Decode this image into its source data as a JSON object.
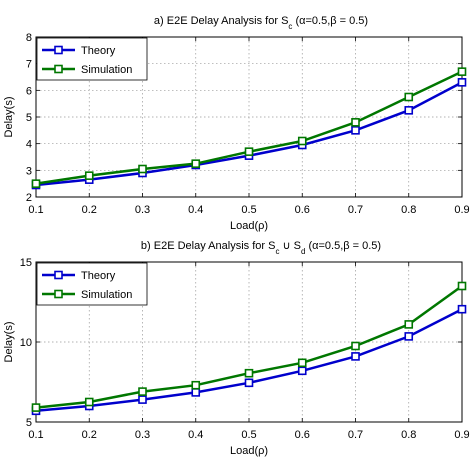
{
  "chart_data": [
    {
      "type": "line",
      "title": "a) E2E Delay Analysis for S c (α=0.5,β = 0.5)",
      "title_parts": {
        "prefix": "a) E2E Delay Analysis for S",
        "sub": "c",
        "suffix": " (α=0.5,β = 0.5)"
      },
      "xlabel": "Load(ρ)",
      "ylabel": "Delay(s)",
      "x": [
        0.1,
        0.2,
        0.3,
        0.4,
        0.5,
        0.6,
        0.7,
        0.8,
        0.9
      ],
      "x_ticks": [
        "0.1",
        "0.2",
        "0.3",
        "0.4",
        "0.5",
        "0.6",
        "0.7",
        "0.8",
        "0.9"
      ],
      "xlim": [
        0.1,
        0.9
      ],
      "ylim": [
        2,
        8
      ],
      "y_ticks": [
        2,
        3,
        4,
        5,
        6,
        7,
        8
      ],
      "y_tick_labels": [
        "2",
        "3",
        "4",
        "5",
        "6",
        "7",
        "8"
      ],
      "grid": true,
      "legend_position": "top-left",
      "series": [
        {
          "name": "Theory",
          "color": "#0000cc",
          "marker": "square",
          "values": [
            2.45,
            2.65,
            2.9,
            3.2,
            3.55,
            3.95,
            4.5,
            5.25,
            6.3
          ]
        },
        {
          "name": "Simulation",
          "color": "#007700",
          "marker": "square",
          "values": [
            2.5,
            2.8,
            3.05,
            3.25,
            3.7,
            4.1,
            4.8,
            5.75,
            6.7
          ]
        }
      ]
    },
    {
      "type": "line",
      "title": "b) E2E Delay Analysis for S c ∪ S d (α=0.5,β = 0.5)",
      "title_parts": {
        "prefix": "b) E2E Delay Analysis for S",
        "sub": "c",
        "mid": " ∪ S",
        "sub2": "d",
        "suffix": " (α=0.5,β = 0.5)"
      },
      "xlabel": "Load(ρ)",
      "ylabel": "Delay(s)",
      "x": [
        0.1,
        0.2,
        0.3,
        0.4,
        0.5,
        0.6,
        0.7,
        0.8,
        0.9
      ],
      "x_ticks": [
        "0.1",
        "0.2",
        "0.3",
        "0.4",
        "0.5",
        "0.6",
        "0.7",
        "0.8",
        "0.9"
      ],
      "xlim": [
        0.1,
        0.9
      ],
      "ylim": [
        5,
        15
      ],
      "y_ticks": [
        5,
        10,
        15
      ],
      "y_tick_labels": [
        "5",
        "10",
        "15"
      ],
      "grid": true,
      "legend_position": "top-left",
      "series": [
        {
          "name": "Theory",
          "color": "#0000cc",
          "marker": "square",
          "values": [
            5.7,
            6.0,
            6.4,
            6.85,
            7.45,
            8.2,
            9.1,
            10.35,
            12.05
          ]
        },
        {
          "name": "Simulation",
          "color": "#007700",
          "marker": "square",
          "values": [
            5.9,
            6.25,
            6.9,
            7.3,
            8.05,
            8.7,
            9.75,
            11.1,
            13.5
          ]
        }
      ]
    }
  ]
}
